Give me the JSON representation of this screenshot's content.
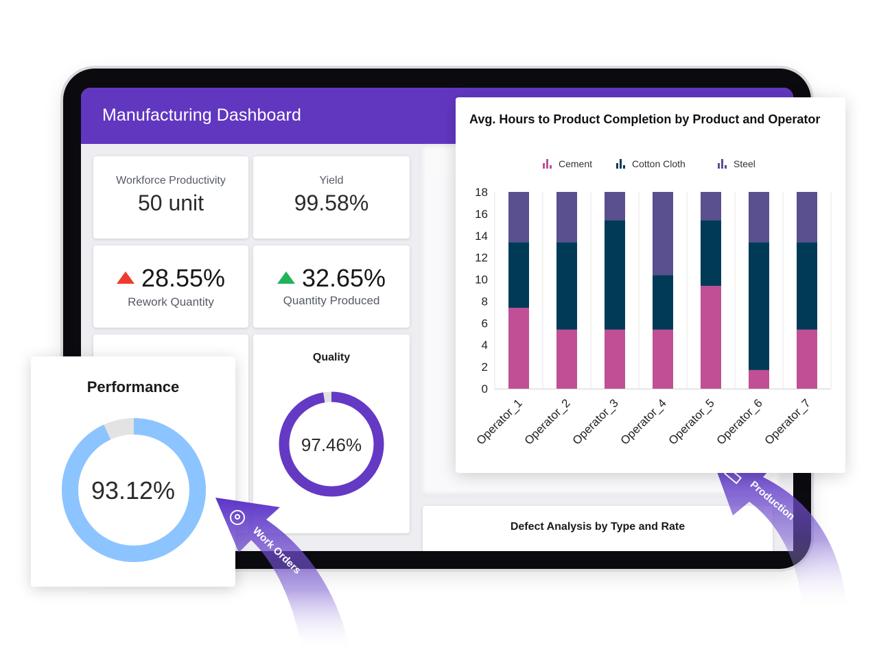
{
  "header": {
    "title": "Manufacturing Dashboard"
  },
  "kpis": {
    "workforce": {
      "label": "Workforce Productivity",
      "value": "50 unit"
    },
    "yield": {
      "label": "Yield",
      "value": "99.58%"
    },
    "rework": {
      "label": "Rework Quantity",
      "value": "28.55%",
      "trend": "up"
    },
    "produced": {
      "label": "Quantity Produced",
      "value": "32.65%",
      "trend": "up"
    }
  },
  "quality": {
    "title": "Quality",
    "value_text": "97.46%",
    "value": 97.46,
    "color": "#6439c4"
  },
  "performance": {
    "title": "Performance",
    "value_text": "93.12%",
    "value": 93.12,
    "color": "#8cc4ff"
  },
  "defect": {
    "title": "Defect Analysis by Type and Rate"
  },
  "callouts": {
    "work_orders": "Work Orders",
    "production": "Production"
  },
  "colors": {
    "brand": "#6137c0",
    "cement": "#c04f95",
    "cotton": "#003a57",
    "steel": "#5a4f8f"
  },
  "chart_data": {
    "type": "bar",
    "stacked": true,
    "title": "Avg. Hours to Product Completion by Product and Operator",
    "categories": [
      "Operator_1",
      "Operator_2",
      "Operator_3",
      "Operator_4",
      "Operator_5",
      "Operator_6",
      "Operator_7"
    ],
    "series": [
      {
        "name": "Cement",
        "color": "#c04f95",
        "values": [
          7.4,
          5.4,
          5.4,
          5.4,
          9.4,
          1.7,
          5.4
        ]
      },
      {
        "name": "Cotton Cloth",
        "color": "#003a57",
        "values": [
          6.0,
          8.0,
          10.0,
          5.0,
          6.0,
          11.7,
          8.0
        ]
      },
      {
        "name": "Steel",
        "color": "#5a4f8f",
        "values": [
          4.6,
          4.6,
          2.6,
          7.6,
          2.6,
          4.6,
          4.6
        ]
      }
    ],
    "ylim": [
      0,
      18
    ],
    "yticks": [
      0,
      2,
      4,
      6,
      8,
      10,
      12,
      14,
      16,
      18
    ],
    "legend": "top-center",
    "grid": "vertical"
  }
}
